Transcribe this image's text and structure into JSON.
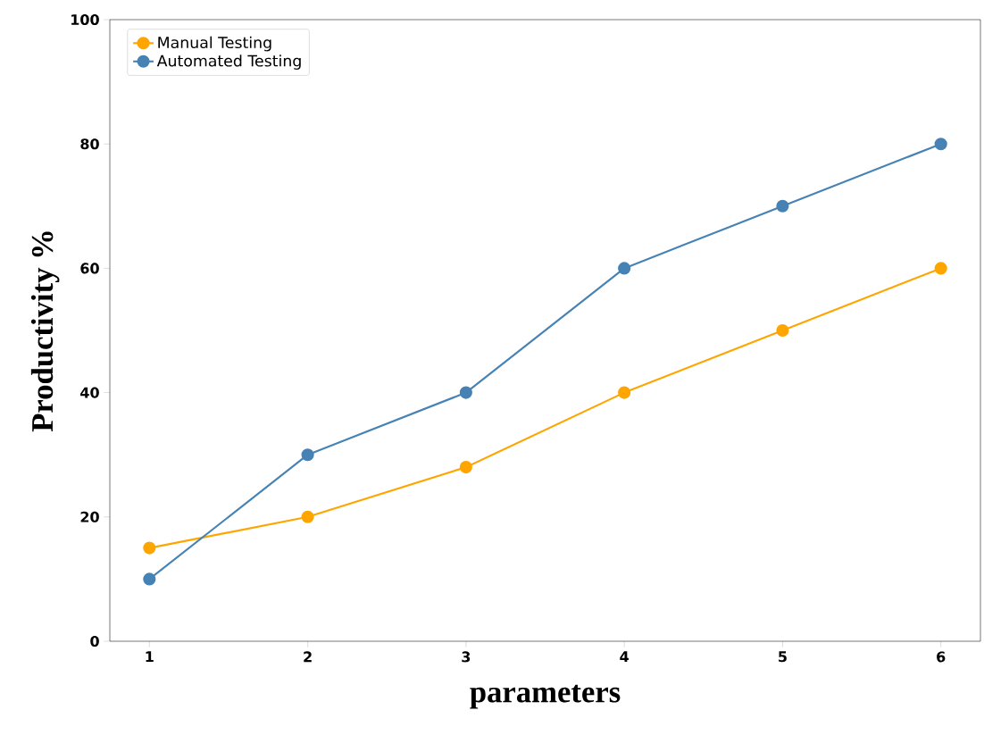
{
  "chart_data": {
    "type": "line",
    "xlabel": "parameters",
    "ylabel": "Productivity %",
    "x": [
      1,
      2,
      3,
      4,
      5,
      6
    ],
    "series": [
      {
        "name": "Manual Testing",
        "color": "#ffa500",
        "values": [
          15,
          20,
          28,
          40,
          50,
          60
        ]
      },
      {
        "name": "Automated Testing",
        "color": "#4682b4",
        "values": [
          10,
          30,
          40,
          60,
          70,
          80
        ]
      }
    ],
    "xlim": [
      0.75,
      6.25
    ],
    "xticks": [
      1,
      2,
      3,
      4,
      5,
      6
    ],
    "ylim": [
      0,
      100
    ],
    "yticks": [
      0,
      20,
      40,
      60,
      80,
      100
    ],
    "legend": "top left",
    "marker": "circle",
    "line_style": "solid",
    "grid": false
  }
}
